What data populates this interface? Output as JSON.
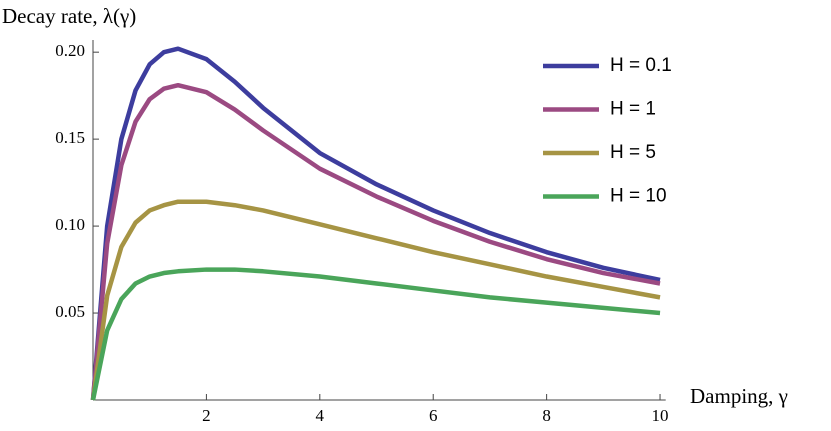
{
  "chart_data": {
    "type": "line",
    "y_label": "Decay rate, λ(γ)",
    "x_label": "Damping, γ",
    "x": [
      0,
      0.25,
      0.5,
      0.75,
      1,
      1.25,
      1.5,
      2,
      2.5,
      3,
      4,
      5,
      6,
      7,
      8,
      9,
      10
    ],
    "series": [
      {
        "name": "H = 0.1",
        "color": "#3d3d9e",
        "values": [
          0,
          0.1,
          0.15,
          0.178,
          0.193,
          0.2,
          0.202,
          0.196,
          0.183,
          0.168,
          0.142,
          0.124,
          0.109,
          0.096,
          0.085,
          0.076,
          0.069
        ]
      },
      {
        "name": "H = 1",
        "color": "#9b4a82",
        "values": [
          0,
          0.09,
          0.135,
          0.16,
          0.173,
          0.179,
          0.181,
          0.177,
          0.167,
          0.155,
          0.133,
          0.117,
          0.103,
          0.091,
          0.081,
          0.073,
          0.067
        ]
      },
      {
        "name": "H = 5",
        "color": "#a69444",
        "values": [
          0,
          0.06,
          0.088,
          0.102,
          0.109,
          0.112,
          0.114,
          0.114,
          0.112,
          0.109,
          0.101,
          0.093,
          0.085,
          0.078,
          0.071,
          0.065,
          0.059
        ]
      },
      {
        "name": "H = 10",
        "color": "#4aa55a",
        "values": [
          0,
          0.04,
          0.058,
          0.067,
          0.071,
          0.073,
          0.074,
          0.075,
          0.075,
          0.074,
          0.071,
          0.067,
          0.063,
          0.059,
          0.056,
          0.053,
          0.05
        ]
      }
    ],
    "xlim": [
      0,
      10.1
    ],
    "ylim": [
      0,
      0.207
    ],
    "xticks": [
      2,
      4,
      6,
      8,
      10
    ],
    "yticks": [
      0.05,
      {
        "value": 0.1,
        "label": "0.10"
      },
      0.15,
      {
        "value": 0.2,
        "label": "0.20"
      }
    ],
    "legend": "right"
  }
}
